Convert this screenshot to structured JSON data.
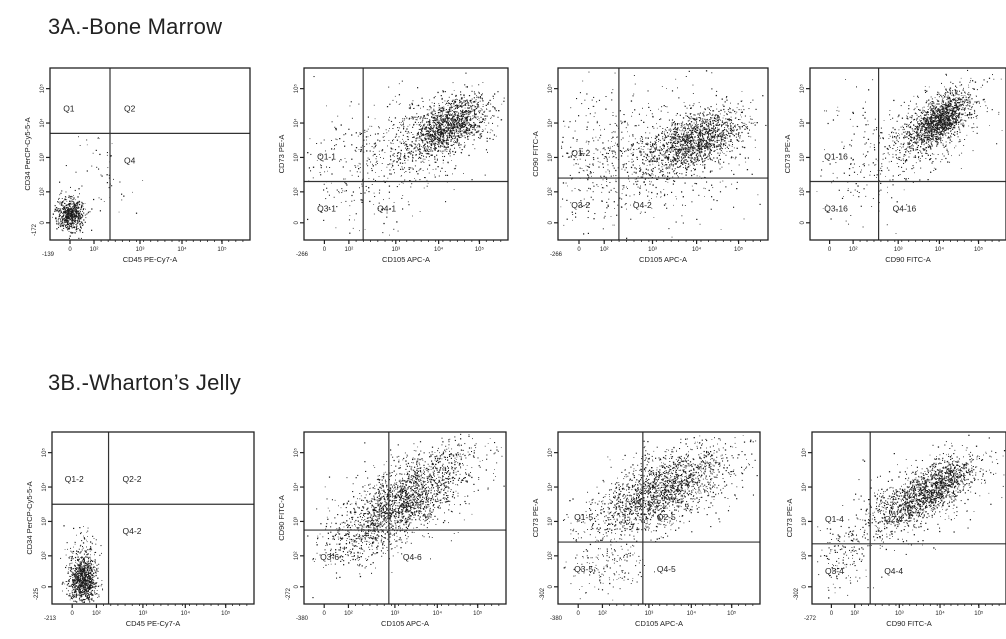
{
  "sections": [
    {
      "title": "3A.-Bone Marrow"
    },
    {
      "title": "3B.-Wharton’s Jelly"
    }
  ],
  "chart_data": [
    {
      "type": "scatter",
      "section": "3A.-Bone Marrow",
      "xlabel": "CD45 PE-Cy7-A",
      "ylabel": "CD34 PerCP-Cy5-5-A",
      "xmin_label": "-139",
      "ymin_label": "-172",
      "quadrants": [
        "Q1",
        "Q2",
        "Q4"
      ],
      "gate_x": 0.3,
      "gate_y": 0.62,
      "clusters": [
        {
          "cx": 0.1,
          "cy": 0.15,
          "sx": 0.035,
          "sy": 0.05,
          "n": 650,
          "r": 0
        },
        {
          "cx": 0.25,
          "cy": 0.4,
          "sx": 0.08,
          "sy": 0.12,
          "n": 50,
          "r": 0
        }
      ]
    },
    {
      "type": "scatter",
      "section": "3A.-Bone Marrow",
      "xlabel": "CD105 APC-A",
      "ylabel": "CD73 PE-A",
      "xmin_label": "-266",
      "ymin_label": "",
      "quadrants": [
        "Q1-1",
        "Q3-1",
        "Q4-1"
      ],
      "gate_x": 0.29,
      "gate_y": 0.34,
      "clusters": [
        {
          "cx": 0.7,
          "cy": 0.66,
          "sx": 0.1,
          "sy": 0.09,
          "n": 1400,
          "r": 0.6
        },
        {
          "cx": 0.5,
          "cy": 0.55,
          "sx": 0.2,
          "sy": 0.15,
          "n": 500,
          "r": 0.3
        },
        {
          "cx": 0.25,
          "cy": 0.35,
          "sx": 0.12,
          "sy": 0.2,
          "n": 140,
          "r": 0
        }
      ]
    },
    {
      "type": "scatter",
      "section": "3A.-Bone Marrow",
      "xlabel": "CD105 APC-A",
      "ylabel": "CD90 FITC-A",
      "xmin_label": "-266",
      "ymin_label": "",
      "quadrants": [
        "Q1-2",
        "Q3-2",
        "Q4-2"
      ],
      "gate_x": 0.29,
      "gate_y": 0.36,
      "clusters": [
        {
          "cx": 0.65,
          "cy": 0.58,
          "sx": 0.12,
          "sy": 0.09,
          "n": 1400,
          "r": 0.55
        },
        {
          "cx": 0.45,
          "cy": 0.48,
          "sx": 0.25,
          "sy": 0.18,
          "n": 700,
          "r": 0.3
        },
        {
          "cx": 0.2,
          "cy": 0.55,
          "sx": 0.12,
          "sy": 0.25,
          "n": 170,
          "r": 0
        }
      ]
    },
    {
      "type": "scatter",
      "section": "3A.-Bone Marrow",
      "xlabel": "CD90 FITC-A",
      "ylabel": "CD73 PE-A",
      "xmin_label": "",
      "ymin_label": "",
      "quadrants": [
        "Q1-16",
        "Q3-16",
        "Q4-16"
      ],
      "gate_x": 0.35,
      "gate_y": 0.34,
      "clusters": [
        {
          "cx": 0.66,
          "cy": 0.7,
          "sx": 0.08,
          "sy": 0.08,
          "n": 1400,
          "r": 0.65
        },
        {
          "cx": 0.55,
          "cy": 0.6,
          "sx": 0.17,
          "sy": 0.15,
          "n": 450,
          "r": 0.5
        },
        {
          "cx": 0.25,
          "cy": 0.45,
          "sx": 0.15,
          "sy": 0.25,
          "n": 110,
          "r": 0
        }
      ]
    },
    {
      "type": "scatter",
      "section": "3B.-Wharton’s Jelly",
      "xlabel": "CD45 PE-Cy7-A",
      "ylabel": "CD34 PerCP-Cy5-5-A",
      "xmin_label": "-213",
      "ymin_label": "-225",
      "quadrants": [
        "Q1-2",
        "Q2-2",
        "Q4-2"
      ],
      "gate_x": 0.28,
      "gate_y": 0.58,
      "clusters": [
        {
          "cx": 0.15,
          "cy": 0.14,
          "sx": 0.035,
          "sy": 0.07,
          "n": 900,
          "r": 0
        },
        {
          "cx": 0.15,
          "cy": 0.28,
          "sx": 0.04,
          "sy": 0.08,
          "n": 120,
          "r": 0
        }
      ]
    },
    {
      "type": "scatter",
      "section": "3B.-Wharton’s Jelly",
      "xlabel": "CD105 APC-A",
      "ylabel": "CD90 FITC-A",
      "xmin_label": "-380",
      "ymin_label": "-272",
      "quadrants": [
        "Q2-6",
        "Q3-6",
        "Q4-6"
      ],
      "gate_x": 0.42,
      "gate_y": 0.43,
      "clusters": [
        {
          "cx": 0.48,
          "cy": 0.6,
          "sx": 0.16,
          "sy": 0.14,
          "n": 1500,
          "r": 0.7
        },
        {
          "cx": 0.55,
          "cy": 0.66,
          "sx": 0.22,
          "sy": 0.18,
          "n": 500,
          "r": 0.6
        },
        {
          "cx": 0.3,
          "cy": 0.38,
          "sx": 0.1,
          "sy": 0.08,
          "n": 200,
          "r": 0.3
        }
      ]
    },
    {
      "type": "scatter",
      "section": "3B.-Wharton’s Jelly",
      "xlabel": "CD105 APC-A",
      "ylabel": "CD73 PE-A",
      "xmin_label": "-380",
      "ymin_label": "-302",
      "quadrants": [
        "Q1-5",
        "Q2-5",
        "Q3-5",
        "Q4-5"
      ],
      "gate_x": 0.42,
      "gate_y": 0.36,
      "clusters": [
        {
          "cx": 0.5,
          "cy": 0.65,
          "sx": 0.17,
          "sy": 0.13,
          "n": 1500,
          "r": 0.7
        },
        {
          "cx": 0.55,
          "cy": 0.7,
          "sx": 0.22,
          "sy": 0.16,
          "n": 500,
          "r": 0.6
        },
        {
          "cx": 0.25,
          "cy": 0.22,
          "sx": 0.09,
          "sy": 0.08,
          "n": 150,
          "r": 0
        }
      ]
    },
    {
      "type": "scatter",
      "section": "3B.-Wharton’s Jelly",
      "xlabel": "CD90 FITC-A",
      "ylabel": "CD73 PE-A",
      "xmin_label": "-272",
      "ymin_label": "-302",
      "quadrants": [
        "Q1-4",
        "Q2-4",
        "Q3-4",
        "Q4-4"
      ],
      "gate_x": 0.3,
      "gate_y": 0.35,
      "clusters": [
        {
          "cx": 0.6,
          "cy": 0.66,
          "sx": 0.13,
          "sy": 0.1,
          "n": 1400,
          "r": 0.7
        },
        {
          "cx": 0.5,
          "cy": 0.58,
          "sx": 0.2,
          "sy": 0.16,
          "n": 400,
          "r": 0.6
        },
        {
          "cx": 0.15,
          "cy": 0.28,
          "sx": 0.06,
          "sy": 0.1,
          "n": 120,
          "r": 0
        }
      ]
    }
  ]
}
